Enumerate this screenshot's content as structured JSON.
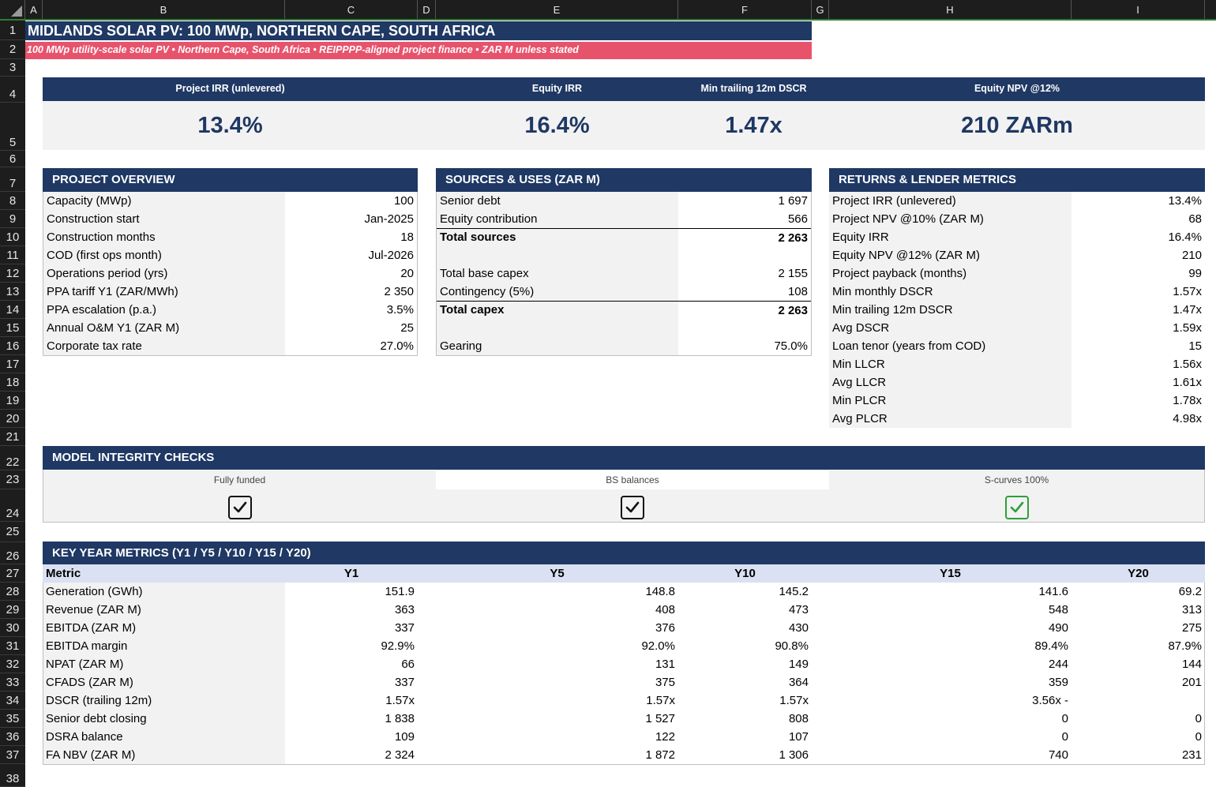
{
  "columns": [
    "A",
    "B",
    "C",
    "D",
    "E",
    "F",
    "G",
    "H",
    "I"
  ],
  "rows": [
    "1",
    "2",
    "3",
    "4",
    "5",
    "6",
    "7",
    "8",
    "9",
    "10",
    "11",
    "12",
    "13",
    "14",
    "15",
    "16",
    "17",
    "18",
    "19",
    "20",
    "21",
    "22",
    "23",
    "24",
    "25",
    "26",
    "27",
    "28",
    "29",
    "30",
    "31",
    "32",
    "33",
    "34",
    "35",
    "36",
    "37",
    "38"
  ],
  "title": "MIDLANDS SOLAR PV: 100 MWp, NORTHERN CAPE, SOUTH AFRICA",
  "subtitle": "100 MWp utility-scale solar PV  •  Northern Cape, South Africa  •  REIPPPP-aligned project finance  •  ZAR M unless stated",
  "kpis": [
    {
      "label": "Project IRR (unlevered)",
      "value": "13.4%"
    },
    {
      "label": "Equity IRR",
      "value": "16.4%"
    },
    {
      "label": "Min trailing 12m DSCR",
      "value": "1.47x"
    },
    {
      "label": "Equity NPV @12%",
      "value": "210 ZARm"
    }
  ],
  "overview": {
    "title": "PROJECT OVERVIEW",
    "rows": [
      {
        "label": "Capacity (MWp)",
        "value": "100"
      },
      {
        "label": "Construction start",
        "value": "Jan-2025"
      },
      {
        "label": "Construction months",
        "value": "18"
      },
      {
        "label": "COD (first ops month)",
        "value": "Jul-2026"
      },
      {
        "label": "Operations period (yrs)",
        "value": "20"
      },
      {
        "label": "PPA tariff Y1 (ZAR/MWh)",
        "value": "2 350"
      },
      {
        "label": "PPA escalation (p.a.)",
        "value": "3.5%"
      },
      {
        "label": "Annual O&M Y1 (ZAR M)",
        "value": "25"
      },
      {
        "label": "Corporate tax rate",
        "value": "27.0%"
      }
    ]
  },
  "sources": {
    "title": "SOURCES & USES (ZAR M)",
    "rows": [
      {
        "label": "Senior debt",
        "value": "1 697"
      },
      {
        "label": "Equity contribution",
        "value": "566"
      },
      {
        "label": "Total sources",
        "value": "2 263"
      },
      {
        "label": "",
        "value": ""
      },
      {
        "label": "Total base capex",
        "value": "2 155"
      },
      {
        "label": "Contingency (5%)",
        "value": "108"
      },
      {
        "label": "Total capex",
        "value": "2 263"
      },
      {
        "label": "",
        "value": ""
      },
      {
        "label": "Gearing",
        "value": "75.0%"
      }
    ]
  },
  "returns": {
    "title": "RETURNS & LENDER METRICS",
    "rows": [
      {
        "label": "Project IRR (unlevered)",
        "value": "13.4%"
      },
      {
        "label": "Project NPV @10% (ZAR M)",
        "value": "68"
      },
      {
        "label": "Equity IRR",
        "value": "16.4%"
      },
      {
        "label": "Equity NPV @12% (ZAR M)",
        "value": "210"
      },
      {
        "label": "Project payback (months)",
        "value": "99"
      },
      {
        "label": "Min monthly DSCR",
        "value": "1.57x"
      },
      {
        "label": "Min trailing 12m DSCR",
        "value": "1.47x"
      },
      {
        "label": "Avg DSCR",
        "value": "1.59x"
      },
      {
        "label": "Loan tenor (years from COD)",
        "value": "15"
      },
      {
        "label": "Min LLCR",
        "value": "1.56x"
      },
      {
        "label": "Avg LLCR",
        "value": "1.61x"
      },
      {
        "label": "Min PLCR",
        "value": "1.78x"
      },
      {
        "label": "Avg PLCR",
        "value": "4.98x"
      }
    ]
  },
  "checks": {
    "title": "MODEL INTEGRITY CHECKS",
    "items": [
      {
        "label": "Fully funded",
        "status_color": "#111111"
      },
      {
        "label": "BS balances",
        "status_color": "#111111"
      },
      {
        "label": "S-curves 100%",
        "status_color": "#2e9e3a"
      }
    ]
  },
  "keyyear": {
    "title": "KEY YEAR METRICS  (Y1 / Y5 / Y10 / Y15 / Y20)",
    "headers": [
      "Metric",
      "Y1",
      "Y5",
      "Y10",
      "Y15",
      "Y20"
    ],
    "rows": [
      {
        "label": "Generation (GWh)",
        "values": [
          "151.9",
          "148.8",
          "145.2",
          "141.6",
          "69.2"
        ]
      },
      {
        "label": "Revenue (ZAR M)",
        "values": [
          "363",
          "408",
          "473",
          "548",
          "313"
        ]
      },
      {
        "label": "EBITDA (ZAR M)",
        "values": [
          "337",
          "376",
          "430",
          "490",
          "275"
        ]
      },
      {
        "label": "EBITDA margin",
        "values": [
          "92.9%",
          "92.0%",
          "90.8%",
          "89.4%",
          "87.9%"
        ]
      },
      {
        "label": "NPAT (ZAR M)",
        "values": [
          "66",
          "131",
          "149",
          "244",
          "144"
        ]
      },
      {
        "label": "CFADS (ZAR M)",
        "values": [
          "337",
          "375",
          "364",
          "359",
          "201"
        ]
      },
      {
        "label": "DSCR (trailing 12m)",
        "values": [
          "1.57x",
          "1.57x",
          "1.57x",
          "3.56x -",
          ""
        ]
      },
      {
        "label": "Senior debt closing",
        "values": [
          "1 838",
          "1 527",
          "808",
          "0",
          "0"
        ]
      },
      {
        "label": "DSRA balance",
        "values": [
          "109",
          "122",
          "107",
          "0",
          "0"
        ]
      },
      {
        "label": "FA NBV (ZAR M)",
        "values": [
          "2 324",
          "1 872",
          "1 306",
          "740",
          "231"
        ]
      }
    ]
  },
  "colors": {
    "navy": "#1f3864",
    "pink": "#e8536c",
    "green": "#2e9e3a",
    "grid_header": "#1d1d1d"
  }
}
